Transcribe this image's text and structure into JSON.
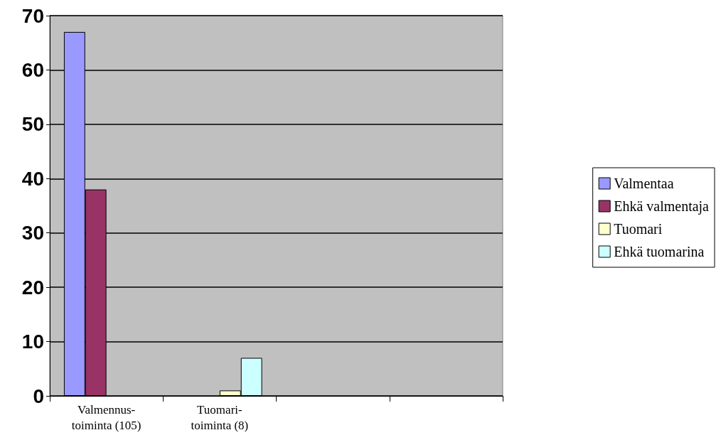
{
  "chart_data": {
    "type": "bar",
    "categories": [
      "Valmennus-\ntoiminta (105)",
      "Tuomari-\ntoiminta (8)",
      null,
      null
    ],
    "series": [
      {
        "name": "Valmentaa",
        "color": "#9999ff",
        "values": [
          67,
          null,
          null,
          null
        ]
      },
      {
        "name": "Ehkä valmentaja",
        "color": "#993366",
        "values": [
          38,
          null,
          null,
          null
        ]
      },
      {
        "name": "Tuomari",
        "color": "#ffffcc",
        "values": [
          null,
          1,
          null,
          null
        ]
      },
      {
        "name": "Ehkä tuomarina",
        "color": "#ccffff",
        "values": [
          null,
          7,
          null,
          null
        ]
      }
    ],
    "ylim": [
      0,
      70
    ],
    "yticks": [
      0,
      10,
      20,
      30,
      40,
      50,
      60,
      70
    ],
    "grid": "y",
    "legend": "right"
  }
}
